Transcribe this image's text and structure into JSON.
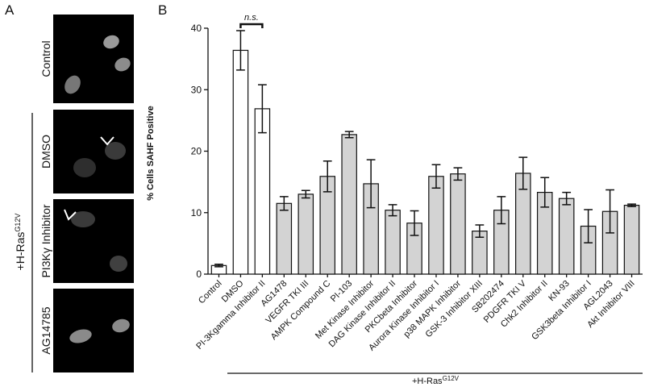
{
  "panel_a": {
    "label": "A",
    "images": [
      "Control",
      "DMSO",
      "PI3Kγ Inhibitor",
      "AG14785"
    ],
    "group_label": {
      "text": "+H-Ras",
      "superscript": "G12V"
    }
  },
  "chart_data": {
    "type": "bar",
    "panel_label": "B",
    "y_label": "% Cells SAHF Positive",
    "annotation": "n.s.",
    "group_label": {
      "text": "+H-Ras",
      "superscript": "G12V"
    },
    "categories": [
      "Control",
      "DMSO",
      "PI-3Kgamma Inhibitor II",
      "AG1478",
      "VEGFR TKI III",
      "AMPK Compound C",
      "PI-103",
      "Met Kinase Inhibitor",
      "DAG Kinase Inhibitor II",
      "PKCbeta Inhibitor",
      "Aurora Kinase Inhibitor I",
      "p38 MAPK Inhibitor",
      "GSK-3 Inhibitor XIII",
      "SB202474",
      "PDGFR TKI V",
      "Chk2 Inhibitor II",
      "KN-93",
      "GSK3beta Inhibitor I",
      "AGL2043",
      "Akt Inhibitor VIII"
    ],
    "values": [
      1.4,
      36.4,
      26.9,
      11.5,
      13.0,
      15.9,
      22.7,
      14.7,
      10.4,
      8.3,
      15.9,
      16.3,
      7.0,
      10.4,
      16.4,
      13.3,
      12.3,
      7.8,
      10.2,
      11.2
    ],
    "errors": [
      0.2,
      3.2,
      3.9,
      1.1,
      0.6,
      2.5,
      0.5,
      3.9,
      0.9,
      2.0,
      1.9,
      1.0,
      1.0,
      2.2,
      2.6,
      2.4,
      1.0,
      2.7,
      3.5,
      0.2
    ],
    "colors": [
      "#ffffff",
      "#ffffff",
      "#ffffff",
      "#d3d3d3",
      "#d3d3d3",
      "#d3d3d3",
      "#d3d3d3",
      "#d3d3d3",
      "#d3d3d3",
      "#d3d3d3",
      "#d3d3d3",
      "#d3d3d3",
      "#d3d3d3",
      "#d3d3d3",
      "#d3d3d3",
      "#d3d3d3",
      "#d3d3d3",
      "#d3d3d3",
      "#d3d3d3",
      "#d3d3d3"
    ],
    "ylim": [
      0,
      40
    ],
    "yticks": [
      0,
      10,
      20,
      30,
      40
    ],
    "grid": false
  }
}
